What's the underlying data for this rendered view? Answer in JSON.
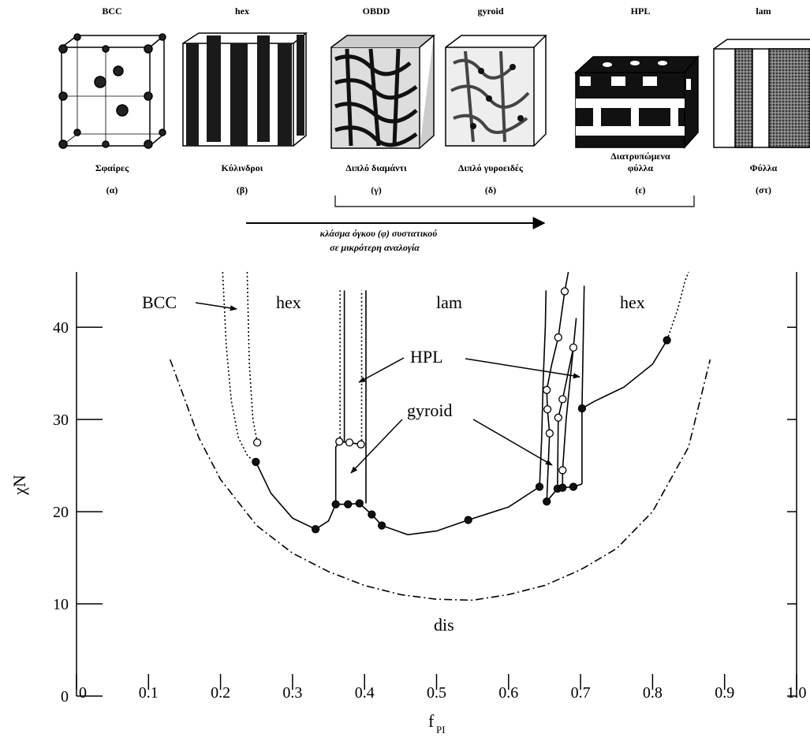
{
  "figure": {
    "structures": [
      {
        "name": "BCC",
        "label": [
          "Σφαίρες"
        ],
        "letter": "(α)"
      },
      {
        "name": "hex",
        "label": [
          "Κύλινδροι"
        ],
        "letter": "(β)"
      },
      {
        "name": "OBDD",
        "label": [
          "Διπλό διαμάντι"
        ],
        "letter": "(γ)"
      },
      {
        "name": "gyroid",
        "label": [
          "Διπλό γυροειδές"
        ],
        "letter": "(δ)"
      },
      {
        "name": "HPL",
        "label": [
          "Διατρυπώμενα",
          "φύλλα"
        ],
        "letter": "(ε)"
      },
      {
        "name": "lam",
        "label": [
          "Φύλλα"
        ],
        "letter": "(στ)"
      }
    ],
    "arrow_caption": [
      "κλάσμα όγκου (φ) συστατικού",
      "σε μικρότερη αναλογία"
    ]
  },
  "chart_data": {
    "type": "line",
    "xlabel": "f",
    "xlabel_sub": "PI",
    "ylabel": "χN",
    "xlim": [
      0,
      1
    ],
    "ylim": [
      0,
      46
    ],
    "xticks": [
      0,
      0.1,
      0.2,
      0.3,
      0.4,
      0.5,
      0.6,
      0.7,
      0.8,
      0.9,
      {
        "value": 1,
        "label": "1.0"
      }
    ],
    "yticks": [
      0,
      10,
      20,
      30,
      40
    ],
    "annotations": [
      "BCC",
      "hex",
      "lam",
      "hex",
      "HPL",
      "gyroid",
      "dis"
    ],
    "series": [
      {
        "style": "dashdot",
        "marker": "none",
        "x": [
          0.13,
          0.17,
          0.2,
          0.25,
          0.3,
          0.35,
          0.4,
          0.45,
          0.5,
          0.55,
          0.6,
          0.65,
          0.7,
          0.75,
          0.8,
          0.85,
          0.88
        ],
        "values": [
          36.5,
          28,
          23.5,
          18.5,
          15.5,
          13.5,
          12,
          11,
          10.5,
          10.4,
          11,
          12,
          13.7,
          16,
          20,
          27,
          36.5
        ]
      },
      {
        "style": "dotted",
        "marker": "none",
        "x": [
          0.203,
          0.208,
          0.215,
          0.225,
          0.238,
          0.249
        ],
        "values": [
          46,
          38,
          32,
          28,
          26,
          25.4
        ]
      },
      {
        "style": "dotted",
        "marker": "none",
        "x": [
          0.237,
          0.24,
          0.245,
          0.251
        ],
        "values": [
          46,
          36,
          30,
          27.5
        ]
      },
      {
        "style": "solid",
        "marker": "none",
        "x": [
          0.249,
          0.27,
          0.3,
          0.332,
          0.35,
          0.36,
          0.377,
          0.393,
          0.41,
          0.424,
          0.46,
          0.5,
          0.544,
          0.6,
          0.643
        ],
        "values": [
          25.4,
          22,
          19.3,
          18.1,
          19,
          20.8,
          20.8,
          20.9,
          19.7,
          18.5,
          17.5,
          17.9,
          19.1,
          20.5,
          22.7
        ]
      },
      {
        "style": "solid",
        "marker": "none",
        "x": [
          0.36,
          0.36,
          0.365,
          0.379,
          0.395
        ],
        "values": [
          20.8,
          27,
          27.6,
          27.5,
          27.3
        ]
      },
      {
        "style": "dotted",
        "marker": "none",
        "x": [
          0.366,
          0.366
        ],
        "values": [
          27.6,
          44
        ]
      },
      {
        "style": "solid",
        "marker": "none",
        "x": [
          0.372,
          0.372
        ],
        "values": [
          27.5,
          44
        ]
      },
      {
        "style": "dotted",
        "marker": "none",
        "x": [
          0.396,
          0.396
        ],
        "values": [
          27.3,
          44
        ]
      },
      {
        "style": "solid",
        "marker": "none",
        "x": [
          0.402,
          0.402
        ],
        "values": [
          20.9,
          44
        ]
      },
      {
        "style": "solid",
        "marker": "none",
        "x": [
          0.643,
          0.646,
          0.648,
          0.651,
          0.652
        ],
        "values": [
          22.7,
          28,
          34,
          40,
          44
        ]
      },
      {
        "style": "solid",
        "marker": "none",
        "x": [
          0.653,
          0.657,
          0.654,
          0.653,
          0.66,
          0.669,
          0.678,
          0.683
        ],
        "values": [
          21.1,
          28.5,
          31.1,
          33.2,
          36,
          38.9,
          43.9,
          46
        ]
      },
      {
        "style": "solid",
        "marker": "none",
        "x": [
          0.668,
          0.669,
          0.675,
          0.69,
          0.694
        ],
        "values": [
          22.5,
          30.2,
          32.2,
          37.8,
          41
        ]
      },
      {
        "style": "solid",
        "marker": "none",
        "x": [
          0.675,
          0.675,
          0.68,
          0.69
        ],
        "values": [
          22.6,
          24.5,
          30,
          37.8
        ]
      },
      {
        "style": "solid",
        "marker": "none",
        "x": [
          0.653,
          0.668,
          0.675,
          0.69,
          0.702
        ],
        "values": [
          21.1,
          22.5,
          22.6,
          22.7,
          23
        ]
      },
      {
        "style": "solid",
        "marker": "none",
        "x": [
          0.702,
          0.702,
          0.705
        ],
        "values": [
          23,
          31.2,
          44.5
        ]
      },
      {
        "style": "solid",
        "marker": "none",
        "x": [
          0.702,
          0.72,
          0.76,
          0.8,
          0.82
        ],
        "values": [
          31.2,
          32,
          33.5,
          36,
          38.6
        ]
      },
      {
        "style": "dotted",
        "marker": "none",
        "x": [
          0.82,
          0.835,
          0.845,
          0.85
        ],
        "values": [
          38.6,
          42,
          45,
          46
        ]
      },
      {
        "style": "none",
        "marker": "filled",
        "x": [
          0.249,
          0.332,
          0.36,
          0.377,
          0.393,
          0.41,
          0.424,
          0.544,
          0.643,
          0.653,
          0.668,
          0.675,
          0.69,
          0.702,
          0.82
        ],
        "values": [
          25.4,
          18.1,
          20.8,
          20.8,
          20.9,
          19.7,
          18.5,
          19.1,
          22.7,
          21.1,
          22.5,
          22.6,
          22.7,
          31.2,
          38.6
        ]
      },
      {
        "style": "none",
        "marker": "open",
        "x": [
          0.251,
          0.365,
          0.379,
          0.395,
          0.653,
          0.654,
          0.657,
          0.669,
          0.678,
          0.669,
          0.675,
          0.675,
          0.69
        ],
        "values": [
          27.5,
          27.6,
          27.5,
          27.3,
          33.2,
          31.1,
          28.5,
          38.9,
          43.9,
          30.2,
          32.2,
          24.5,
          37.8
        ]
      }
    ]
  }
}
